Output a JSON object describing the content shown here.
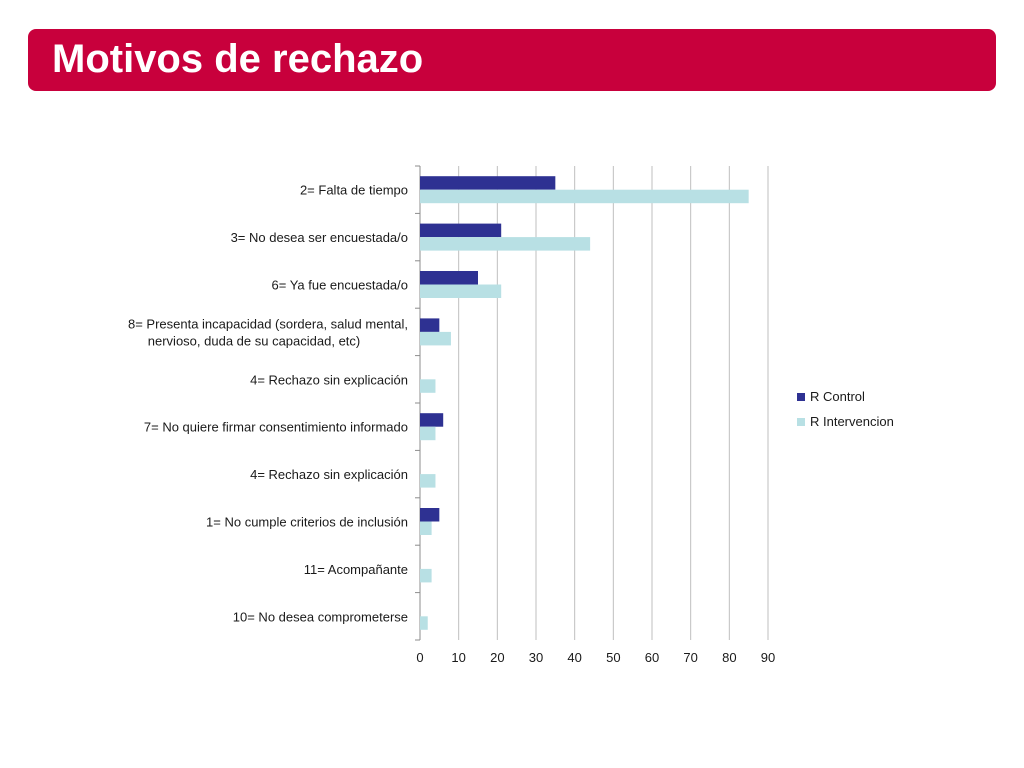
{
  "title": "Motivos de rechazo",
  "colors": {
    "banner": "#c8003c",
    "control": "#2e3192",
    "intervencion": "#b8e0e4",
    "grid": "#bfbfbf"
  },
  "chart_data": {
    "type": "bar",
    "orientation": "horizontal",
    "categories": [
      [
        "2= Falta de tiempo"
      ],
      [
        "3= No desea ser encuestada/o"
      ],
      [
        "6= Ya fue encuestada/o"
      ],
      [
        "8= Presenta incapacidad (sordera, salud mental,",
        "nervioso, duda de su capacidad, etc)"
      ],
      [
        "4= Rechazo sin explicación"
      ],
      [
        "7= No quiere firmar consentimiento informado"
      ],
      [
        "4= Rechazo sin explicación"
      ],
      [
        "1= No cumple criterios de inclusión"
      ],
      [
        "11= Acompañante"
      ],
      [
        "10= No desea comprometerse"
      ]
    ],
    "series": [
      {
        "name": "R Control",
        "values": [
          35,
          21,
          15,
          5,
          0,
          6,
          0,
          5,
          0,
          0
        ]
      },
      {
        "name": "R Intervencion",
        "values": [
          85,
          44,
          21,
          8,
          4,
          4,
          4,
          3,
          3,
          2
        ]
      }
    ],
    "xlim": [
      0,
      90
    ],
    "xticks": [
      0,
      10,
      20,
      30,
      40,
      50,
      60,
      70,
      80,
      90
    ],
    "grid": true,
    "legend_position": "right"
  }
}
